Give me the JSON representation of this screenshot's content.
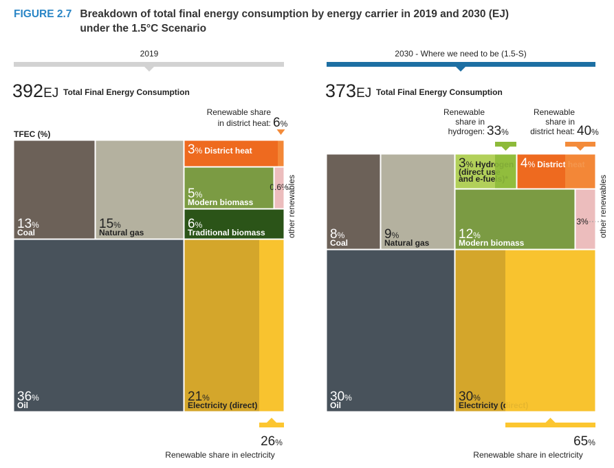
{
  "figure_label": "FIGURE 2.7",
  "title": "Breakdown of total final energy consumption by energy carrier in 2019 and 2030 (EJ) under the 1.5°C Scenario",
  "chart_data": [
    {
      "type": "treemap",
      "title": "2019",
      "total": 392,
      "total_unit": "EJ",
      "total_label": "Total Final Energy Consumption",
      "axis_label": "TFEC (%)",
      "unit": "%",
      "header_color": "#d2d2d2",
      "categories": [
        "Coal",
        "Natural gas",
        "Oil",
        "District heat",
        "Modern biomass",
        "other renewables",
        "Traditional biomass",
        "Electricity (direct)"
      ],
      "values": [
        13,
        15,
        36,
        3,
        5,
        0.6,
        6,
        21
      ],
      "colors": [
        "#6c6158",
        "#b4b19f",
        "#48525b",
        "#ee6a1f",
        "#7b9b43",
        "#ecbdbd",
        "#2b5418",
        "#d4a62b"
      ],
      "renewable_shares": [
        {
          "label_lines": [
            "Renewable share",
            "in district heat:"
          ],
          "value": 6,
          "color": "#f38b3a"
        },
        {
          "label_lines": [
            "Renewable share in electricity"
          ],
          "value": 26,
          "color": "#fcc630"
        }
      ]
    },
    {
      "type": "treemap",
      "title": "2030  -  Where we need to be (1.5-S)",
      "total": 373,
      "total_unit": "EJ",
      "total_label": "Total Final Energy Consumption",
      "unit": "%",
      "header_color": "#1d6fa3",
      "categories": [
        "Coal",
        "Natural gas",
        "Oil",
        "Hydrogen",
        "District heat",
        "Modern biomass",
        "other renewables",
        "Electricity (direct)"
      ],
      "values": [
        8,
        9,
        30,
        3,
        4,
        12,
        3,
        30
      ],
      "colors": [
        "#6c6158",
        "#b4b19f",
        "#48525b",
        "#b2d05a",
        "#ee6a1f",
        "#7b9b43",
        "#ecbdbd",
        "#d4a62b"
      ],
      "notes": {
        "Hydrogen": [
          "(direct use",
          "and e-fuels)*"
        ]
      },
      "renewable_shares": [
        {
          "label_lines": [
            "Renewable",
            "share in",
            "hydrogen:"
          ],
          "value": 33,
          "color": "#8dba3a"
        },
        {
          "label_lines": [
            "Renewable",
            "share in",
            "district heat:"
          ],
          "value": 40,
          "color": "#f38b3a"
        },
        {
          "label_lines": [
            "Renewable share in electricity"
          ],
          "value": 65,
          "color": "#fcc630"
        }
      ]
    }
  ]
}
